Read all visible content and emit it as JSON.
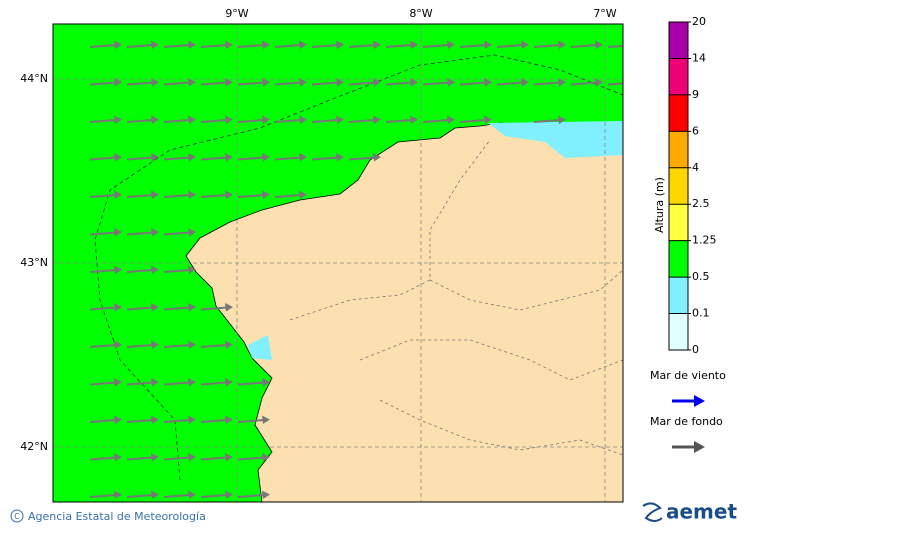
{
  "map": {
    "lon_labels": [
      "9°W",
      "8°W",
      "7°W"
    ],
    "lat_labels": [
      "44°N",
      "43°N",
      "42°N"
    ]
  },
  "colorbar": {
    "title": "Altura (m)",
    "levels": [
      0,
      0.1,
      0.5,
      1.25,
      2.5,
      4,
      6,
      9,
      14,
      20
    ],
    "colors": [
      "#e0ffff",
      "#80f0ff",
      "#00ff00",
      "#ffff40",
      "#ffd700",
      "#ffaa00",
      "#ff0000",
      "#ee0077",
      "#aa00aa"
    ]
  },
  "legend": [
    {
      "label": "Mar de viento",
      "color": "#0000ee"
    },
    {
      "label": "Mar de fondo",
      "color": "#555555"
    }
  ],
  "footer": {
    "text": "Agencia Estatal de Meteorología",
    "logo": "aemet"
  }
}
